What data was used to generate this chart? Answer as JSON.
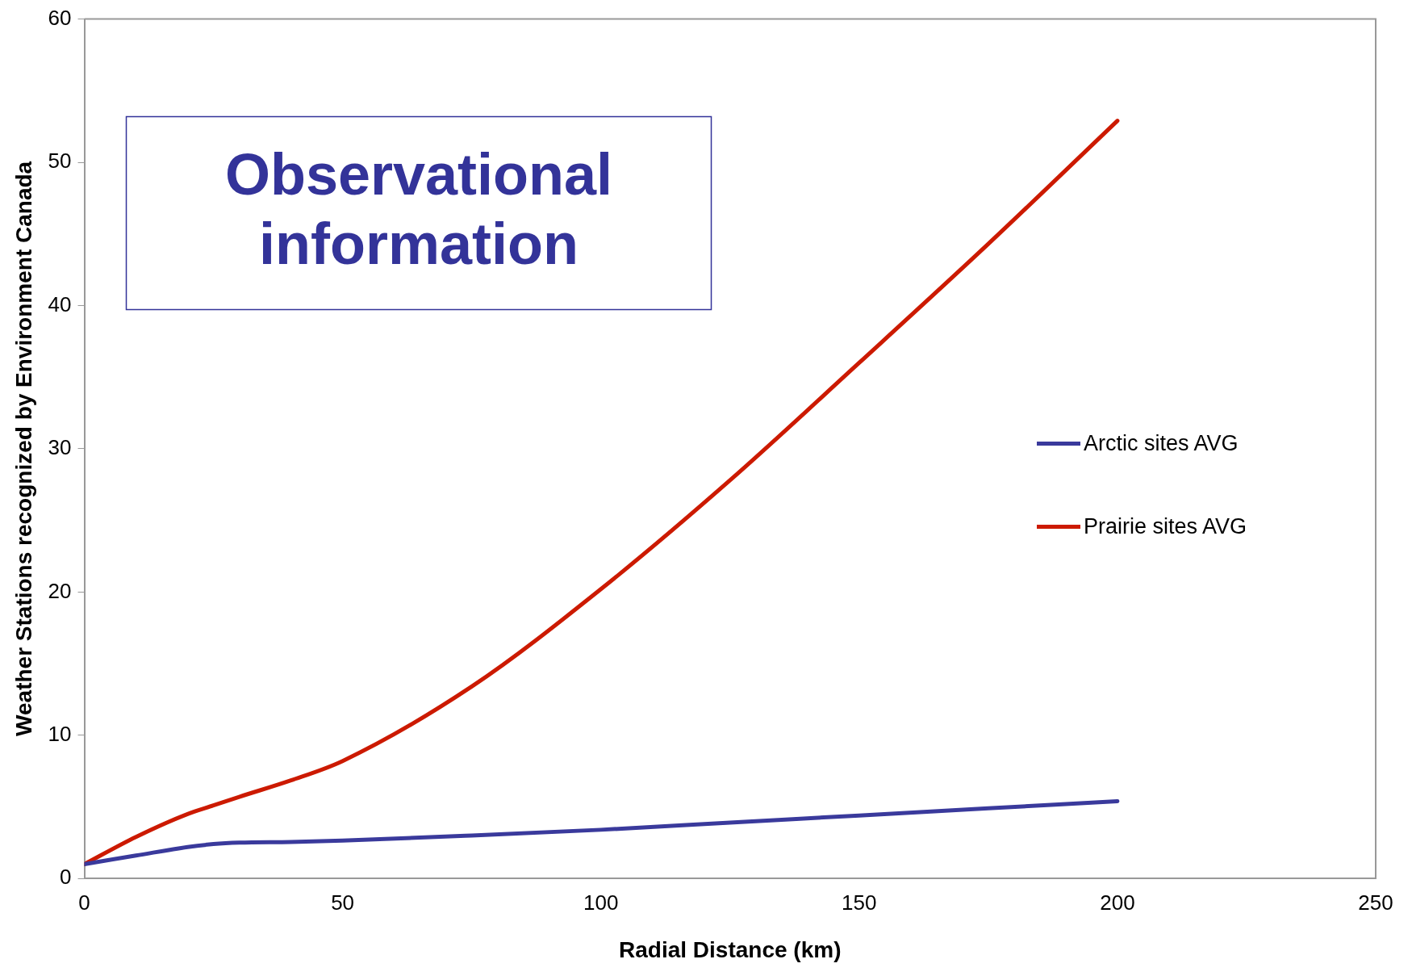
{
  "chart_data": {
    "type": "line",
    "xlabel": "Radial Distance (km)",
    "ylabel": "Weather Stations recognized by Environment Canada",
    "annotations": [
      "Observational information"
    ],
    "x": [
      0,
      10,
      20,
      25,
      30,
      40,
      50,
      75,
      100,
      125,
      150,
      175,
      200
    ],
    "series": [
      {
        "name": "Arctic sites AVG",
        "color": "#3a3a9c",
        "values": [
          1,
          1.6,
          2.2,
          2.4,
          2.5,
          2.55,
          2.65,
          3.0,
          3.4,
          3.9,
          4.4,
          4.9,
          5.4
        ]
      },
      {
        "name": "Prairie sites AVG",
        "color": "#cc1a00",
        "values": [
          1,
          2.9,
          4.5,
          5.1,
          5.7,
          6.85,
          8.2,
          13.4,
          20.2,
          27.8,
          36,
          44.3,
          52.9
        ]
      }
    ],
    "xlim": [
      0,
      250
    ],
    "xticks": [
      0,
      50,
      100,
      150,
      200,
      250
    ],
    "ylim": [
      0,
      60
    ],
    "yticks": [
      0,
      10,
      20,
      30,
      40,
      50,
      60
    ],
    "grid": false,
    "legend": "right",
    "marker": "none",
    "line_style": "solid"
  }
}
